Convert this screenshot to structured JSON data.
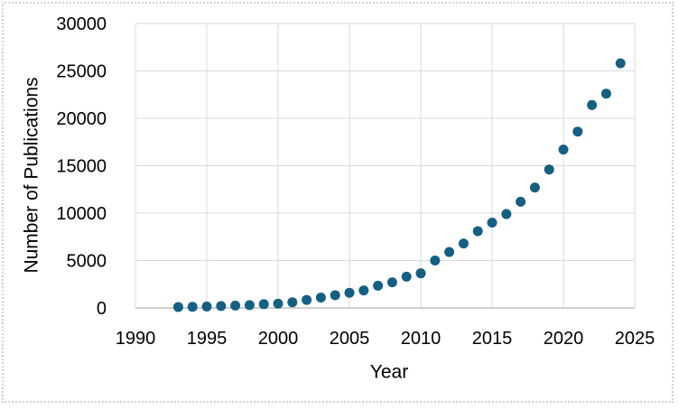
{
  "chart_data": {
    "type": "scatter",
    "title": "",
    "xlabel": "Year",
    "ylabel": "Number of Publications",
    "xlim": [
      1990,
      2025
    ],
    "ylim": [
      0,
      30000
    ],
    "x_ticks": [
      1990,
      1995,
      2000,
      2005,
      2010,
      2015,
      2020,
      2025
    ],
    "y_ticks": [
      0,
      5000,
      10000,
      15000,
      20000,
      25000,
      30000
    ],
    "grid": true,
    "legend": false,
    "series": [
      {
        "name": "Publications",
        "marker": "circle",
        "marker_color": "#156082",
        "points": [
          [
            1993,
            100
          ],
          [
            1994,
            120
          ],
          [
            1995,
            150
          ],
          [
            1996,
            200
          ],
          [
            1997,
            250
          ],
          [
            1998,
            300
          ],
          [
            1999,
            400
          ],
          [
            2000,
            450
          ],
          [
            2001,
            600
          ],
          [
            2002,
            850
          ],
          [
            2003,
            1100
          ],
          [
            2004,
            1350
          ],
          [
            2005,
            1600
          ],
          [
            2006,
            1850
          ],
          [
            2007,
            2350
          ],
          [
            2008,
            2700
          ],
          [
            2009,
            3300
          ],
          [
            2010,
            3650
          ],
          [
            2011,
            5000
          ],
          [
            2012,
            5900
          ],
          [
            2013,
            6800
          ],
          [
            2014,
            8100
          ],
          [
            2015,
            9000
          ],
          [
            2016,
            9900
          ],
          [
            2017,
            11200
          ],
          [
            2018,
            12700
          ],
          [
            2019,
            14600
          ],
          [
            2020,
            16700
          ],
          [
            2021,
            18600
          ],
          [
            2022,
            21400
          ],
          [
            2023,
            22600
          ],
          [
            2024,
            25800
          ]
        ]
      }
    ]
  },
  "colors": {
    "marker": "#156082",
    "gridline": "#d9d9d9",
    "axis_line": "#bfbfbf",
    "text": "#000000",
    "background": "#ffffff",
    "outer_border": "#d2d2d2"
  }
}
